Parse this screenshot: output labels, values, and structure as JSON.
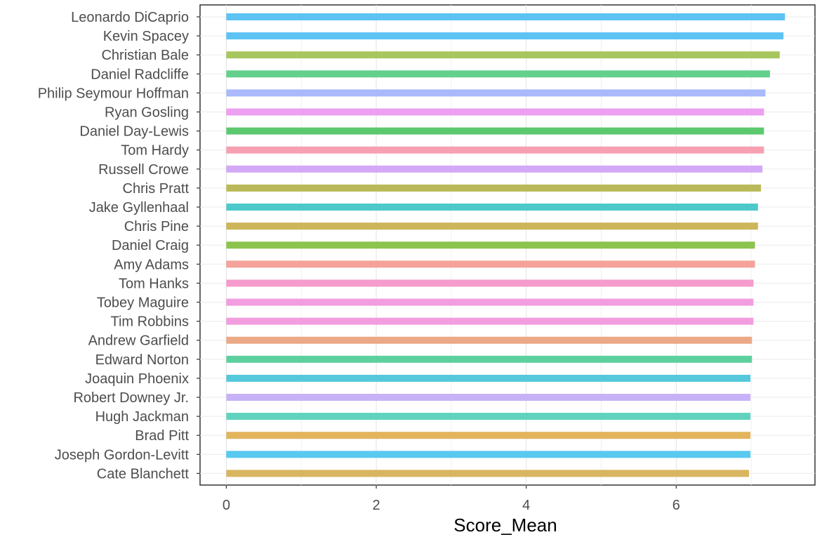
{
  "chart_data": {
    "type": "bar",
    "orientation": "horizontal",
    "categories": [
      "Leonardo DiCaprio",
      "Kevin Spacey",
      "Christian Bale",
      "Daniel Radcliffe",
      "Philip Seymour Hoffman",
      "Ryan Gosling",
      "Daniel Day-Lewis",
      "Tom Hardy",
      "Russell Crowe",
      "Chris Pratt",
      "Jake Gyllenhaal",
      "Chris Pine",
      "Daniel Craig",
      "Amy Adams",
      "Tom Hanks",
      "Tobey Maguire",
      "Tim Robbins",
      "Andrew Garfield",
      "Edward Norton",
      "Joaquin Phoenix",
      "Robert Downey Jr.",
      "Hugh Jackman",
      "Brad Pitt",
      "Joseph Gordon-Levitt",
      "Cate Blanchett"
    ],
    "values": [
      7.45,
      7.43,
      7.38,
      7.25,
      7.19,
      7.17,
      7.17,
      7.17,
      7.15,
      7.13,
      7.09,
      7.09,
      7.05,
      7.05,
      7.03,
      7.03,
      7.03,
      7.01,
      7.01,
      6.99,
      6.99,
      6.99,
      6.99,
      6.99,
      6.97
    ],
    "colors": [
      "#5cc3f3",
      "#5cc3f3",
      "#a8c65e",
      "#63d08c",
      "#a9b9fb",
      "#ed9ff1",
      "#5dc96f",
      "#f6a0b2",
      "#d3a9f7",
      "#b9b95a",
      "#4ec9c9",
      "#ccb55a",
      "#8cc44e",
      "#f4a29a",
      "#f59bcd",
      "#f29ddf",
      "#f29ddf",
      "#eba985",
      "#5dd09f",
      "#55c8dc",
      "#c7b2f7",
      "#5fd3bd",
      "#e2b45c",
      "#59c9ef",
      "#d8b55f"
    ],
    "xlabel": "Score_Mean",
    "ylabel": "",
    "xlim": [
      -0.35,
      7.85
    ],
    "xticks": [
      0,
      2,
      4,
      6
    ],
    "grid": true,
    "legend": "none"
  }
}
